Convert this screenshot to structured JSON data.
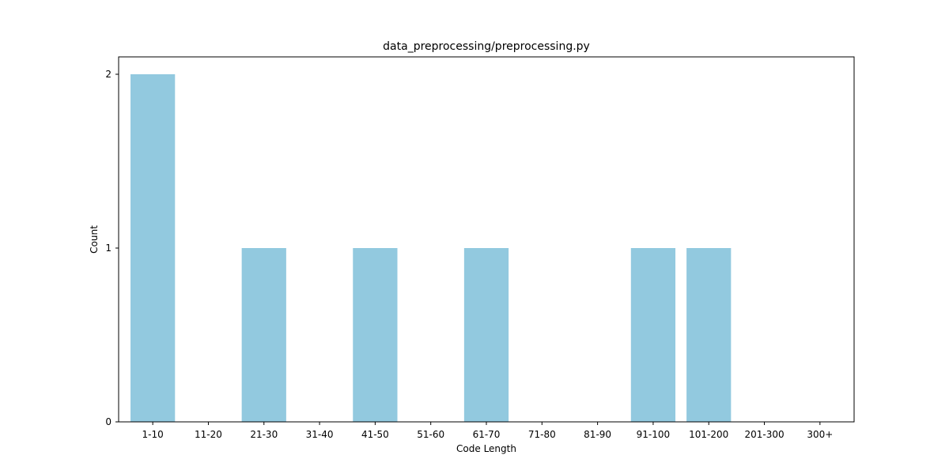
{
  "chart_data": {
    "type": "bar",
    "title": "data_preprocessing/preprocessing.py",
    "xlabel": "Code Length",
    "ylabel": "Count",
    "categories": [
      "1-10",
      "11-20",
      "21-30",
      "31-40",
      "41-50",
      "51-60",
      "61-70",
      "71-80",
      "81-90",
      "91-100",
      "101-200",
      "201-300",
      "300+"
    ],
    "values": [
      2,
      0,
      1,
      0,
      1,
      0,
      1,
      0,
      0,
      1,
      1,
      0,
      0
    ],
    "ylim": [
      0,
      2.1
    ],
    "yticks": [
      0,
      1,
      2
    ],
    "bar_color": "#92c9df",
    "grid": false,
    "legend": "none"
  }
}
